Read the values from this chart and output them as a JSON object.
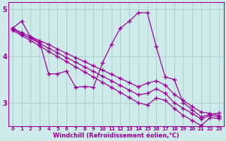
{
  "line1_x": [
    0,
    1,
    2,
    3,
    4,
    5,
    6,
    7,
    8,
    9,
    10,
    11,
    12,
    13,
    14,
    15,
    16,
    17,
    18,
    19,
    20,
    21,
    22,
    23
  ],
  "line1_y": [
    4.6,
    4.75,
    4.4,
    4.3,
    3.62,
    3.62,
    3.68,
    3.33,
    3.35,
    3.33,
    3.85,
    4.25,
    4.6,
    4.75,
    4.93,
    4.93,
    4.2,
    3.55,
    3.5,
    3.0,
    2.85,
    2.7,
    2.75,
    2.78
  ],
  "line2_x": [
    0,
    1,
    2,
    3,
    4,
    5,
    6,
    7,
    8,
    9,
    10,
    11,
    12,
    13,
    14,
    15,
    16,
    17,
    18,
    19,
    20,
    21,
    22,
    23
  ],
  "line2_y": [
    4.6,
    4.5,
    4.42,
    4.33,
    4.25,
    4.15,
    4.06,
    3.97,
    3.88,
    3.79,
    3.7,
    3.61,
    3.52,
    3.43,
    3.34,
    3.42,
    3.47,
    3.38,
    3.18,
    3.05,
    2.92,
    2.8,
    2.77,
    2.73
  ],
  "line3_x": [
    0,
    1,
    2,
    3,
    4,
    5,
    6,
    7,
    8,
    9,
    10,
    11,
    12,
    13,
    14,
    15,
    16,
    17,
    18,
    19,
    20,
    21,
    22,
    23
  ],
  "line3_y": [
    4.58,
    4.47,
    4.38,
    4.27,
    4.17,
    4.07,
    3.97,
    3.87,
    3.77,
    3.67,
    3.57,
    3.47,
    3.37,
    3.27,
    3.17,
    3.2,
    3.3,
    3.2,
    3.0,
    2.88,
    2.77,
    2.65,
    2.73,
    2.7
  ],
  "line4_x": [
    0,
    1,
    2,
    3,
    4,
    5,
    6,
    7,
    8,
    9,
    10,
    11,
    12,
    13,
    14,
    15,
    16,
    17,
    18,
    19,
    20,
    21,
    22,
    23
  ],
  "line4_y": [
    4.55,
    4.44,
    4.33,
    4.22,
    4.1,
    3.99,
    3.88,
    3.77,
    3.66,
    3.55,
    3.44,
    3.33,
    3.22,
    3.11,
    3.0,
    2.95,
    3.1,
    3.05,
    2.88,
    2.73,
    2.62,
    2.51,
    2.68,
    2.66
  ],
  "color": "#990099",
  "bg_color": "#ceeaea",
  "grid_color": "#aacccc",
  "xlabel": "Windchill (Refroidissement éolien,°C)",
  "xlim_min": -0.5,
  "xlim_max": 23.5,
  "ylim_min": 2.5,
  "ylim_max": 5.15,
  "yticks": [
    3,
    4,
    5
  ],
  "xticks": [
    0,
    1,
    2,
    3,
    4,
    5,
    6,
    7,
    8,
    9,
    10,
    11,
    12,
    13,
    14,
    15,
    16,
    17,
    18,
    19,
    20,
    21,
    22,
    23
  ],
  "marker": "+",
  "markersize": 4,
  "linewidth": 0.9
}
